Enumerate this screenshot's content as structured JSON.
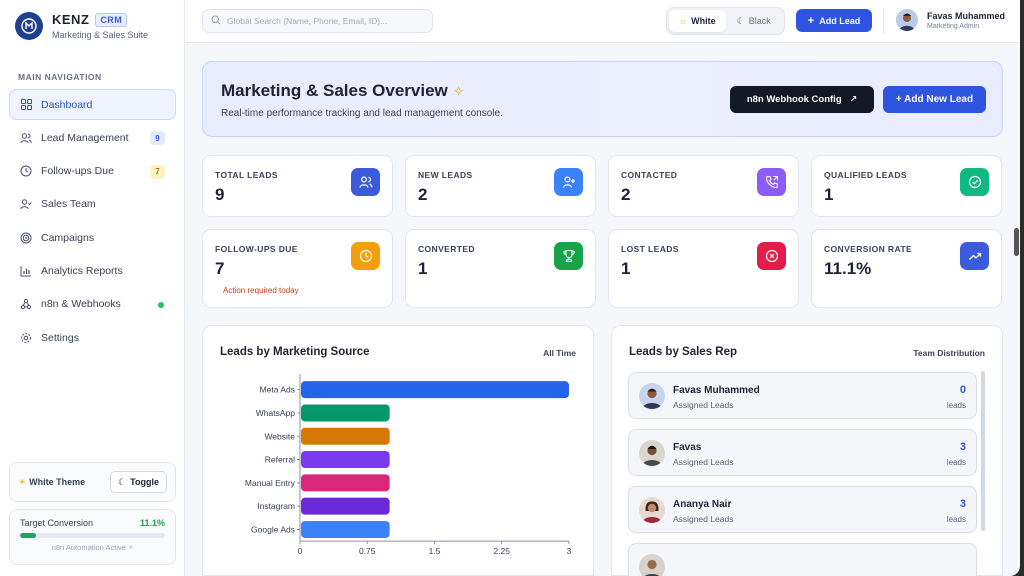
{
  "brand": {
    "name": "KENZ",
    "badge": "CRM",
    "subtitle": "Marketing & Sales Suite"
  },
  "nav": {
    "heading": "MAIN NAVIGATION",
    "items": [
      {
        "label": "Dashboard",
        "icon": "grid-icon",
        "active": true
      },
      {
        "label": "Lead Management",
        "icon": "users-icon",
        "badge": "9"
      },
      {
        "label": "Follow-ups Due",
        "icon": "clock-icon",
        "badge": "7"
      },
      {
        "label": "Sales Team",
        "icon": "user-check-icon"
      },
      {
        "label": "Campaigns",
        "icon": "target-icon"
      },
      {
        "label": "Analytics Reports",
        "icon": "bar-chart-icon"
      },
      {
        "label": "n8n & Webhooks",
        "icon": "webhook-icon",
        "dot": true
      },
      {
        "label": "Settings",
        "icon": "gear-icon"
      }
    ]
  },
  "theme_card": {
    "label": "White Theme",
    "toggle_label": "Toggle"
  },
  "target": {
    "label": "Target Conversion",
    "value": "11.1%",
    "progress": 0.111,
    "note": "n8n Automation Active ⚡"
  },
  "topbar": {
    "search_placeholder": "Global Search (Name, Phone, Email, ID)...",
    "theme_white": "White",
    "theme_black": "Black",
    "add_lead": "Add Lead",
    "user_name": "Favas Muhammed",
    "user_role": "Marketing Admin"
  },
  "hero": {
    "title": "Marketing & Sales Overview",
    "subtitle": "Real-time performance tracking and lead management console.",
    "webhook_button": "n8n Webhook Config",
    "new_lead_button": "+ Add New Lead"
  },
  "stats": [
    {
      "label": "TOTAL LEADS",
      "value": "9",
      "color": "#3b5bdb",
      "icon": "users-icon"
    },
    {
      "label": "NEW LEADS",
      "value": "2",
      "color": "#3b82f6",
      "icon": "user-plus-icon"
    },
    {
      "label": "CONTACTED",
      "value": "2",
      "color": "#8b5cf6",
      "icon": "phone-icon"
    },
    {
      "label": "QUALIFIED LEADS",
      "value": "1",
      "color": "#10b981",
      "icon": "check-circle-icon"
    },
    {
      "label": "FOLLOW-UPS DUE",
      "value": "7",
      "color": "#f59e0b",
      "icon": "clock-icon",
      "note": "Action required today"
    },
    {
      "label": "CONVERTED",
      "value": "1",
      "color": "#16a34a",
      "icon": "trophy-icon"
    },
    {
      "label": "LOST LEADS",
      "value": "1",
      "color": "#e11d48",
      "icon": "x-circle-icon"
    },
    {
      "label": "CONVERSION RATE",
      "value": "11.1%",
      "color": "#3b5bdb",
      "icon": "trending-up-icon"
    }
  ],
  "source_panel": {
    "title": "Leads by Marketing Source",
    "meta": "All Time"
  },
  "chart_data": {
    "type": "bar",
    "orientation": "horizontal",
    "categories": [
      "Meta Ads",
      "WhatsApp",
      "Website",
      "Referral",
      "Manual Entry",
      "Instagram",
      "Google Ads"
    ],
    "values": [
      3,
      1,
      1,
      1,
      1,
      1,
      1
    ],
    "colors": [
      "#2563eb",
      "#059669",
      "#d97706",
      "#7c3aed",
      "#db2777",
      "#6d28d9",
      "#3b82f6"
    ],
    "xticks": [
      "0",
      "0.75",
      "1.5",
      "2.25",
      "3"
    ],
    "xlim": [
      0,
      3
    ],
    "title": "",
    "xlabel": "",
    "ylabel": "",
    "grid": false
  },
  "rep_panel": {
    "title": "Leads by Sales Rep",
    "meta": "Team Distribution",
    "sub_label": "Assigned Leads",
    "unit": "leads",
    "reps": [
      {
        "name": "Favas Muhammed",
        "count": "0"
      },
      {
        "name": "Favas",
        "count": "3"
      },
      {
        "name": "Ananya Nair",
        "count": "3"
      }
    ]
  }
}
